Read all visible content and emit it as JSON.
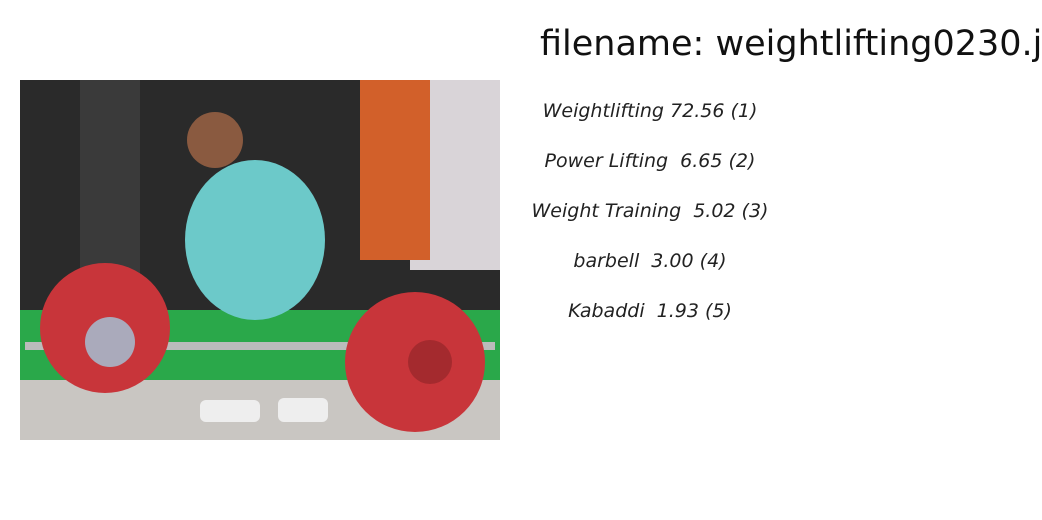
{
  "header": {
    "title": "filename: weightlifting0230.j"
  },
  "predictions": [
    "Weightlifting 72.56 (1)",
    "Power Lifting  6.65 (2)",
    "Weight Training  5.02 (3)",
    "barbell  3.00 (4)",
    "Kabaddi  1.93 (5)"
  ]
}
